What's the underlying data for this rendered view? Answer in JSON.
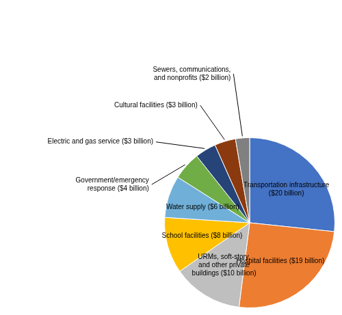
{
  "chart_data": {
    "type": "pie",
    "categories": [
      "Transportation infrastructure\n($20 billion)",
      "Hospital facilities ($19 billion)",
      "URMs, soft-story,\nand other private\nbuildings ($10 billion)",
      "School facilities ($8 billion)",
      "Water supply ($6 billion)",
      "Government/emergency\nresponse ($4 billion)",
      "Electric and gas service ($3 billion)",
      "Cultural facilities ($3 billion)",
      "Sewers, communications,\nand nonprofits ($2 billion)"
    ],
    "values": [
      20,
      19,
      10,
      8,
      6,
      4,
      3,
      3,
      2
    ],
    "colors": [
      "#4472C4",
      "#ED7D31",
      "#BFBFBF",
      "#FFC000",
      "#70B0D8",
      "#70AD47",
      "#264478",
      "#8B3A0F",
      "#808080"
    ]
  }
}
